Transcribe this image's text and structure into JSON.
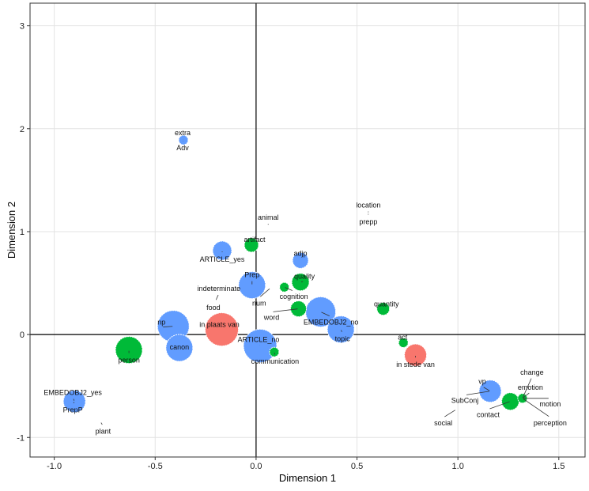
{
  "chart_data": {
    "type": "scatter",
    "subtype": "bubble",
    "title": "",
    "xlabel": "Dimension 1",
    "ylabel": "Dimension 2",
    "xlim": [
      -1.12,
      1.63
    ],
    "ylim": [
      -1.19,
      3.22
    ],
    "xticks": [
      -1.0,
      -0.5,
      0.0,
      0.5,
      1.0,
      1.5
    ],
    "xtick_labels": [
      "-1.0",
      "-0.5",
      "0.0",
      "0.5",
      "1.0",
      "1.5"
    ],
    "yticks": [
      -1,
      0,
      1,
      2,
      3
    ],
    "ytick_labels": [
      "-1",
      "0",
      "1",
      "2",
      "3"
    ],
    "grid": true,
    "legend": "none",
    "colors": {
      "blue": "#619CFF",
      "green": "#00BA38",
      "red": "#F8766D"
    },
    "points": [
      {
        "label": "extra",
        "x": -0.36,
        "y": 1.89,
        "size": 0,
        "group": "green"
      },
      {
        "label": "Adv",
        "x": -0.36,
        "y": 1.89,
        "size": 6,
        "group": "blue"
      },
      {
        "label": "location",
        "x": 0.556,
        "y": 1.18,
        "size": 0,
        "group": "green"
      },
      {
        "label": "prepp",
        "x": 0.556,
        "y": 1.18,
        "size": 0,
        "group": "blue"
      },
      {
        "label": "animal",
        "x": 0.06,
        "y": 1.06,
        "size": 0,
        "group": "green"
      },
      {
        "label": "artifact",
        "x": -0.023,
        "y": 0.87,
        "size": 9,
        "group": "green"
      },
      {
        "label": "ARTICLE_yes",
        "x": -0.168,
        "y": 0.815,
        "size": 12,
        "group": "blue"
      },
      {
        "label": "adjp",
        "x": 0.22,
        "y": 0.72,
        "size": 10,
        "group": "blue"
      },
      {
        "label": "Prep",
        "x": -0.02,
        "y": 0.48,
        "size": 17,
        "group": "blue"
      },
      {
        "label": "quality",
        "x": 0.22,
        "y": 0.51,
        "size": 11,
        "group": "green"
      },
      {
        "label": "cognition",
        "x": 0.14,
        "y": 0.46,
        "size": 6,
        "group": "green"
      },
      {
        "label": "num",
        "x": 0.07,
        "y": 0.45,
        "size": 0,
        "group": "blue"
      },
      {
        "label": "indeterminate",
        "x": -0.2,
        "y": 0.33,
        "size": 0,
        "group": "blue"
      },
      {
        "label": "food",
        "x": -0.2,
        "y": 0.33,
        "size": 0,
        "group": "green"
      },
      {
        "label": "word",
        "x": 0.21,
        "y": 0.25,
        "size": 10,
        "group": "green"
      },
      {
        "label": "EMBEDOBJ2_no",
        "x": 0.32,
        "y": 0.22,
        "size": 19,
        "group": "blue"
      },
      {
        "label": "topic",
        "x": 0.42,
        "y": 0.05,
        "size": 17,
        "group": "blue"
      },
      {
        "label": "quantity",
        "x": 0.63,
        "y": 0.25,
        "size": 8,
        "group": "green"
      },
      {
        "label": "np",
        "x": -0.41,
        "y": 0.08,
        "size": 20,
        "group": "blue"
      },
      {
        "label": "canon",
        "x": -0.38,
        "y": -0.13,
        "size": 17,
        "group": "blue"
      },
      {
        "label": "in plaats van",
        "x": -0.17,
        "y": 0.05,
        "size": 21,
        "group": "red"
      },
      {
        "label": "person",
        "x": -0.63,
        "y": -0.15,
        "size": 17,
        "group": "green"
      },
      {
        "label": "ARTICLE_no",
        "x": 0.02,
        "y": -0.11,
        "size": 21,
        "group": "blue"
      },
      {
        "label": "communication",
        "x": 0.09,
        "y": -0.17,
        "size": 6,
        "group": "green"
      },
      {
        "label": "act",
        "x": 0.73,
        "y": -0.08,
        "size": 6,
        "group": "green"
      },
      {
        "label": "in stede van",
        "x": 0.79,
        "y": -0.2,
        "size": 14,
        "group": "red"
      },
      {
        "label": "vp",
        "x": 1.16,
        "y": -0.55,
        "size": 14,
        "group": "blue"
      },
      {
        "label": "SubConj",
        "x": 1.16,
        "y": -0.55,
        "size": 0,
        "group": "blue"
      },
      {
        "label": "contact",
        "x": 1.26,
        "y": -0.65,
        "size": 11,
        "group": "green"
      },
      {
        "label": "emotion",
        "x": 1.32,
        "y": -0.62,
        "size": 6,
        "group": "green"
      },
      {
        "label": "change",
        "x": 1.32,
        "y": -0.62,
        "size": 0,
        "group": "green"
      },
      {
        "label": "motion",
        "x": 1.32,
        "y": -0.62,
        "size": 0,
        "group": "green"
      },
      {
        "label": "perception",
        "x": 1.32,
        "y": -0.62,
        "size": 0,
        "group": "green"
      },
      {
        "label": "social",
        "x": 0.99,
        "y": -0.73,
        "size": 0,
        "group": "green"
      },
      {
        "label": "EMBEDOBJ2_yes",
        "x": -0.9,
        "y": -0.65,
        "size": 14,
        "group": "blue"
      },
      {
        "label": "PrepP",
        "x": -0.9,
        "y": -0.65,
        "size": 0,
        "group": "blue"
      },
      {
        "label": "plant",
        "x": -0.77,
        "y": -0.85,
        "size": 0,
        "group": "green"
      }
    ]
  }
}
